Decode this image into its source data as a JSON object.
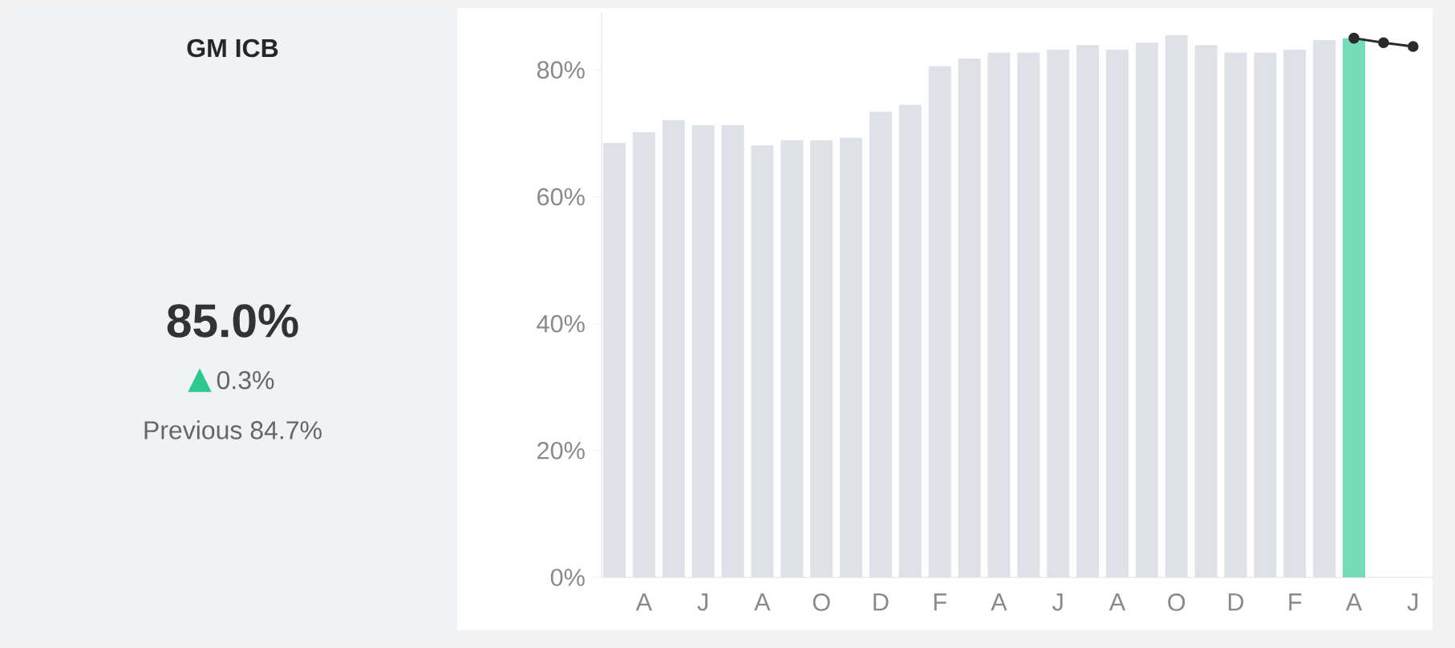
{
  "chart_data": [
    {
      "type": "other",
      "title": "GM ICB",
      "annotations": [
        "85.0%",
        "0.3%",
        "Previous 84.7%"
      ]
    },
    {
      "type": "bar",
      "categories": [
        null,
        "A",
        null,
        "J",
        null,
        "A",
        null,
        "O",
        null,
        "D",
        null,
        "F",
        null,
        "A",
        null,
        "J",
        null,
        "A",
        null,
        "O",
        null,
        "D",
        null,
        "F",
        null,
        "A",
        null,
        "J"
      ],
      "series": [
        {
          "type": "bar",
          "values": [
            68.5,
            70.2,
            72.1,
            71.3,
            71.3,
            68.1,
            68.9,
            68.9,
            69.3,
            73.4,
            74.5,
            80.6,
            81.8,
            82.7,
            82.7,
            83.2,
            83.9,
            83.2,
            84.3,
            85.5,
            83.9,
            82.7,
            82.7,
            83.2,
            84.7,
            85.0,
            null,
            null
          ],
          "colors": [
            "#dfe1e8",
            "#dfe1e8",
            "#dfe1e8",
            "#dfe1e8",
            "#dfe1e8",
            "#dfe1e8",
            "#dfe1e8",
            "#dfe1e8",
            "#dfe1e8",
            "#dfe1e8",
            "#dfe1e8",
            "#dfe1e8",
            "#dfe1e8",
            "#dfe1e8",
            "#dfe1e8",
            "#dfe1e8",
            "#dfe1e8",
            "#dfe1e8",
            "#dfe1e8",
            "#dfe1e8",
            "#dfe1e8",
            "#dfe1e8",
            "#dfe1e8",
            "#dfe1e8",
            "#dfe1e8",
            "#74dcb6",
            "#dfe1e8",
            "#dfe1e8"
          ]
        },
        {
          "type": "line",
          "color": "#2b2b2b",
          "marker": "circle",
          "values": [
            null,
            null,
            null,
            null,
            null,
            null,
            null,
            null,
            null,
            null,
            null,
            null,
            null,
            null,
            null,
            null,
            null,
            null,
            null,
            null,
            null,
            null,
            null,
            null,
            null,
            85.0,
            84.3,
            83.7
          ]
        }
      ],
      "ylim": [
        0,
        89
      ],
      "yticks": [
        {
          "value": 0,
          "label": "0%"
        },
        {
          "value": 20,
          "label": "20%"
        },
        {
          "value": 40,
          "label": "40%"
        },
        {
          "value": 60,
          "label": "60%"
        },
        {
          "value": 80,
          "label": "80%"
        }
      ]
    }
  ]
}
